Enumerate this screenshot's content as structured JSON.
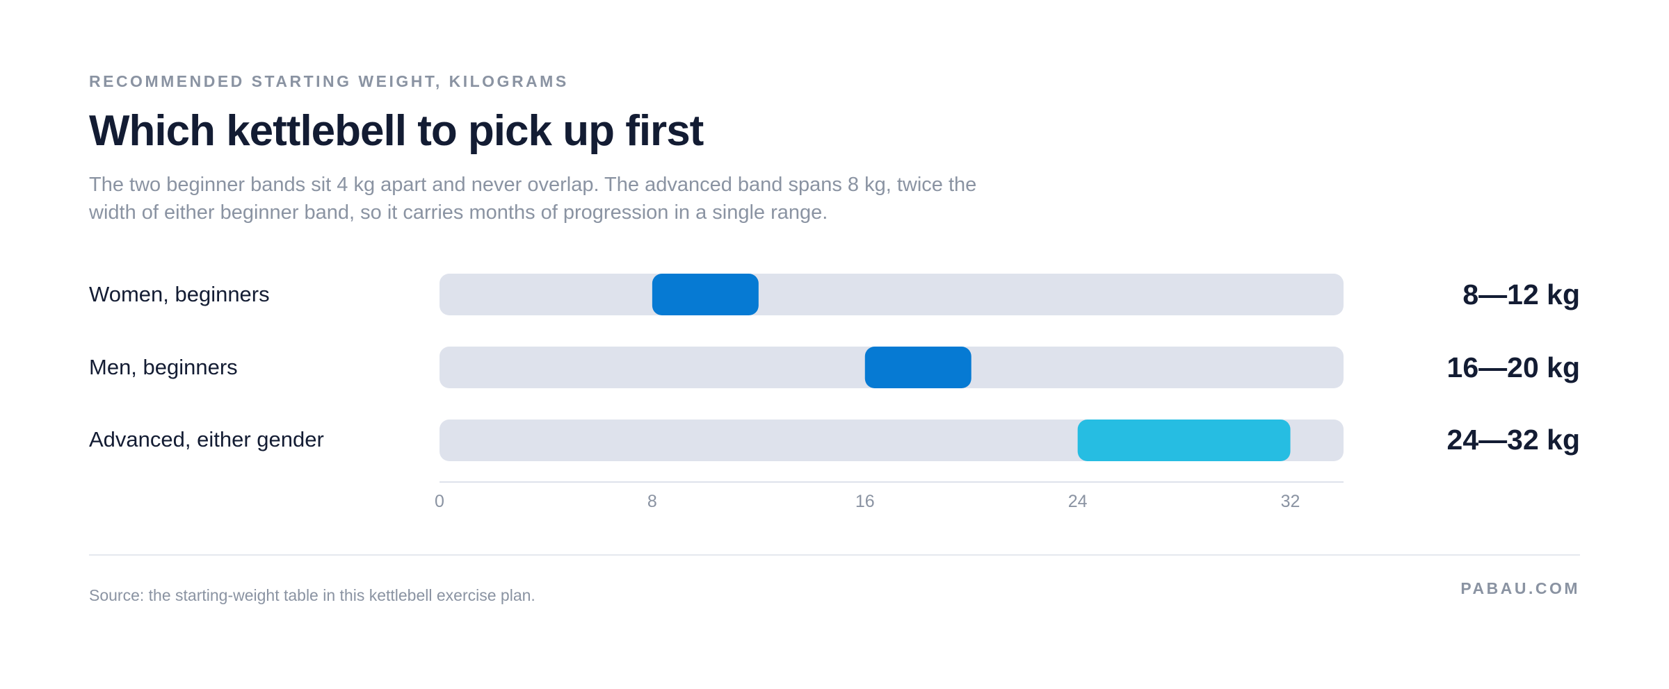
{
  "header": {
    "eyebrow": "RECOMMENDED STARTING WEIGHT, KILOGRAMS",
    "title": "Which kettlebell to pick up first",
    "subtitle": "The two beginner bands sit 4 kg apart and never overlap. The advanced band spans 8 kg, twice the width of either beginner band, so it carries months of progression in a single range."
  },
  "chart_data": {
    "type": "bar",
    "subtype": "range",
    "xlim": [
      0,
      34
    ],
    "xticks": [
      0,
      8,
      16,
      24,
      32
    ],
    "xtick_labels": [
      "0",
      "8",
      "16",
      "24",
      "32"
    ],
    "grid": false,
    "legend": "none",
    "series": [
      {
        "label": "Women, beginners",
        "min": 8,
        "max": 12,
        "value_label": "8—12 kg",
        "color": "#067ad3"
      },
      {
        "label": "Men, beginners",
        "min": 16,
        "max": 20,
        "value_label": "16—20 kg",
        "color": "#067ad3"
      },
      {
        "label": "Advanced, either gender",
        "min": 24,
        "max": 32,
        "value_label": "24—32 kg",
        "color": "#26bde2"
      }
    ],
    "track_color": "#dee2ec",
    "axis_color": "#dee2ec"
  },
  "footer": {
    "source": "Source: the starting-weight table in this kettlebell exercise plan.",
    "brand": "PABAU.COM"
  }
}
